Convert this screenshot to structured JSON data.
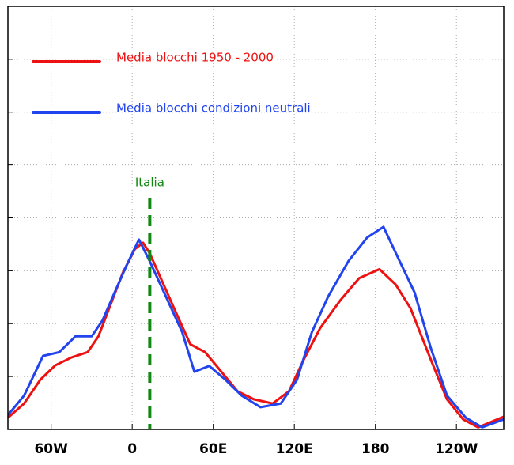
{
  "chart_data": {
    "type": "line",
    "xlim": [
      -92,
      275
    ],
    "ylim": [
      0,
      8
    ],
    "xticks": [
      {
        "value": -60,
        "label": "60W"
      },
      0,
      {
        "value": 60,
        "label": "60E"
      },
      {
        "value": 120,
        "label": "120E"
      },
      180,
      {
        "value": 240,
        "label": "120W"
      }
    ],
    "yticks": [
      1,
      2,
      3,
      4,
      5,
      6,
      7
    ],
    "grid": true,
    "legend": "upper left",
    "series": [
      {
        "name": "Media blocchi 1950 - 2000",
        "color": "#ee1111",
        "x": [
          -92,
          -80,
          -68,
          -57,
          -45,
          -33,
          -25,
          -16,
          -7,
          2,
          8,
          13,
          22,
          31,
          43,
          54,
          66,
          78,
          90,
          104,
          116,
          127,
          139,
          154,
          168,
          183,
          195,
          206,
          221,
          233,
          245,
          256,
          275
        ],
        "values": [
          0.22,
          0.49,
          0.94,
          1.21,
          1.36,
          1.46,
          1.76,
          2.36,
          2.96,
          3.41,
          3.53,
          3.33,
          2.81,
          2.29,
          1.61,
          1.46,
          1.09,
          0.72,
          0.57,
          0.49,
          0.72,
          1.32,
          1.91,
          2.44,
          2.86,
          3.03,
          2.74,
          2.29,
          1.32,
          0.57,
          0.19,
          0.04,
          0.24
        ]
      },
      {
        "name": "Media blocchi condizioni neutrali",
        "color": "#2244ee",
        "x": [
          -92,
          -80,
          -66,
          -54,
          -42,
          -30,
          -22,
          -13,
          -4,
          5,
          13,
          25,
          37,
          46,
          57,
          69,
          81,
          95,
          110,
          122,
          133,
          145,
          160,
          174,
          186,
          198,
          209,
          221,
          233,
          247,
          259,
          275
        ],
        "values": [
          0.27,
          0.64,
          1.39,
          1.46,
          1.76,
          1.76,
          2.06,
          2.59,
          3.11,
          3.59,
          3.18,
          2.51,
          1.84,
          1.09,
          1.2,
          0.94,
          0.64,
          0.42,
          0.49,
          0.94,
          1.84,
          2.51,
          3.18,
          3.63,
          3.83,
          3.18,
          2.59,
          1.54,
          0.64,
          0.22,
          0.04,
          0.19
        ]
      }
    ],
    "annotations": [
      {
        "text": "Italia",
        "x": 13,
        "color": "#118811"
      }
    ]
  }
}
